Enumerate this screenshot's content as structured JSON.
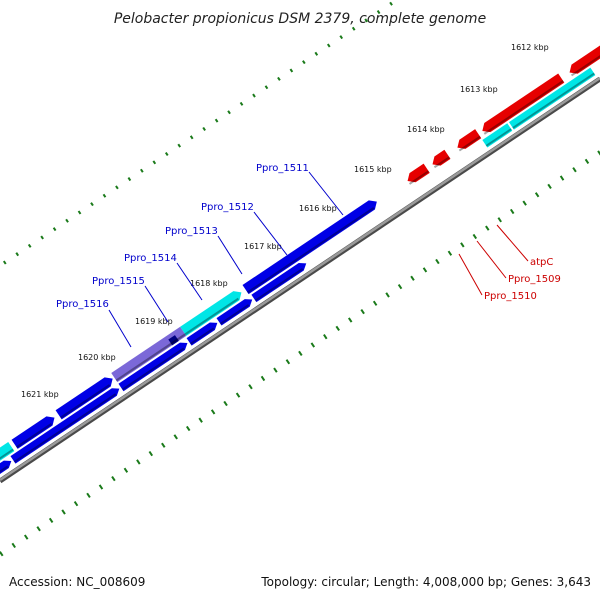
{
  "title": "Pelobacter propionicus DSM 2379, complete genome",
  "footer": {
    "accession": "Accession: NC_008609",
    "topology": "Topology: circular; Length: 4,008,000 bp; Genes: 3,643"
  },
  "ticks": [
    "1612 kbp",
    "1613 kbp",
    "1614 kbp",
    "1615 kbp",
    "1616 kbp",
    "1617 kbp",
    "1618 kbp",
    "1619 kbp",
    "1620 kbp",
    "1621 kbp"
  ],
  "genes_forward": [
    "Ppro_1511",
    "Ppro_1512",
    "Ppro_1513",
    "Ppro_1514",
    "Ppro_1515",
    "Ppro_1516"
  ],
  "genes_reverse": [
    "atpC",
    "Ppro_1509",
    "Ppro_1510"
  ],
  "colors": {
    "forward_cds": "#0000e6",
    "reverse_cds": "#e60000",
    "cyan": "#00e6e6",
    "purple": "#7b68d8",
    "backbone": "#808080",
    "tick": "#1a7a1a",
    "forward_label": "#0000cc",
    "reverse_label": "#cc0000"
  }
}
